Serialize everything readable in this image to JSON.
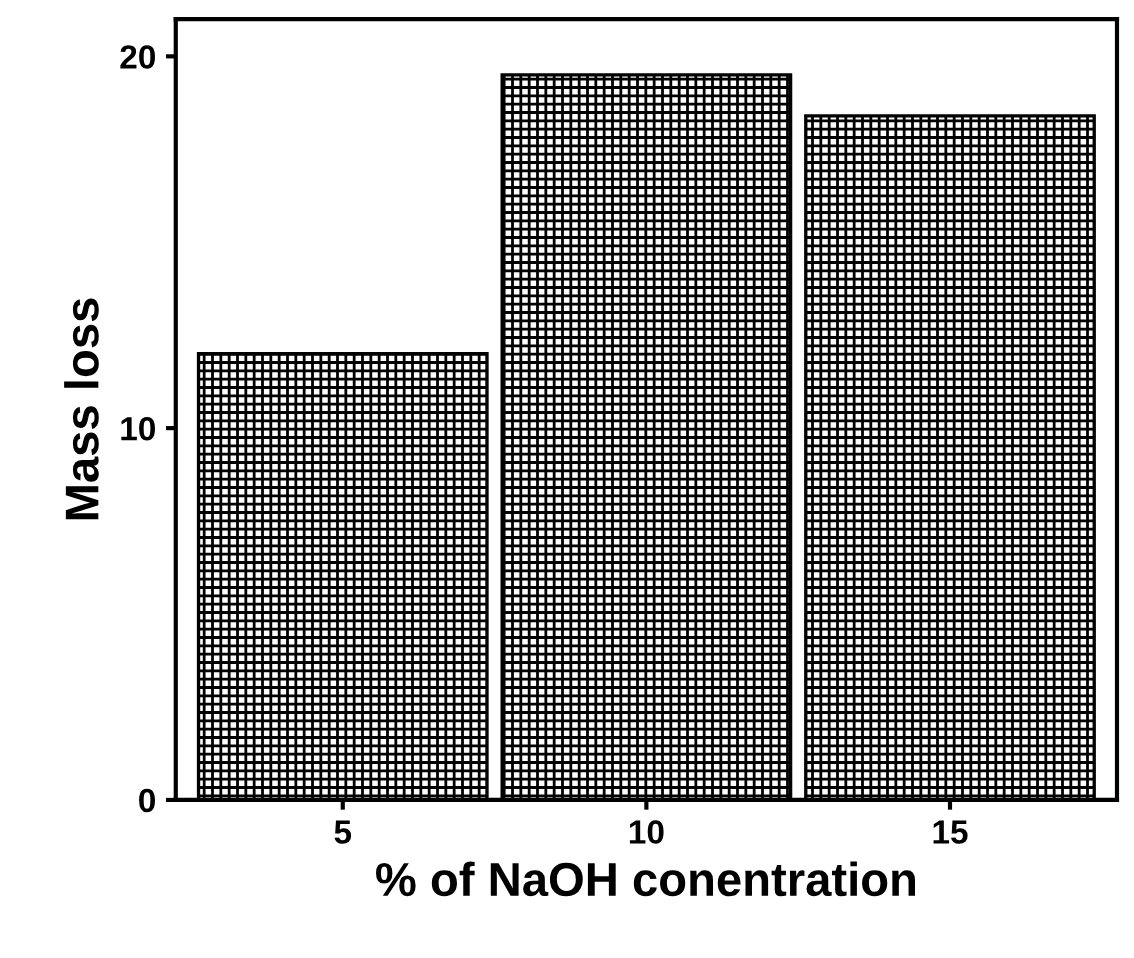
{
  "chart_data": {
    "type": "bar",
    "xlabel": "% of NaOH conentration",
    "ylabel": "Mass loss",
    "categories": [
      "5",
      "10",
      "15"
    ],
    "series": [
      {
        "color": "#000000",
        "values": [
          12.0,
          19.5,
          18.4
        ]
      }
    ],
    "ylim": [
      0,
      21
    ],
    "yticks": [
      0,
      10,
      20
    ],
    "grid": false,
    "legend": false
  }
}
